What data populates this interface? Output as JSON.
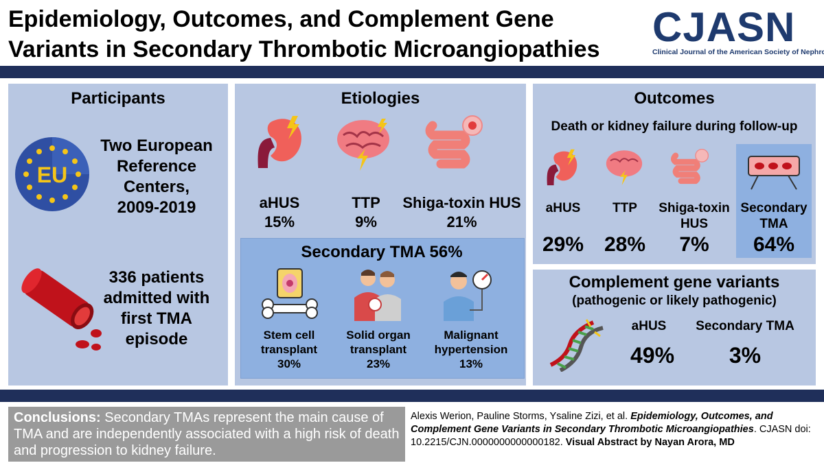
{
  "header": {
    "title_line1": "Epidemiology, Outcomes, and Complement Gene",
    "title_line2": "Variants in Secondary Thrombotic Microangiopathies",
    "logo_text": "CJASN",
    "logo_subtitle": "Clinical Journal of the American Society of Nephrology"
  },
  "participants": {
    "title": "Participants",
    "eu_label": "EU",
    "centers_lines": [
      "Two European",
      "Reference",
      "Centers,",
      "2009-2019"
    ],
    "patients_lines": [
      "336 patients",
      "admitted with",
      "first TMA",
      "episode"
    ]
  },
  "etiologies": {
    "title": "Etiologies",
    "items": [
      {
        "name": "aHUS",
        "pct": "15%",
        "icon": "kidney-icon"
      },
      {
        "name": "TTP",
        "pct": "9%",
        "icon": "brain-icon"
      },
      {
        "name": "Shiga-toxin HUS",
        "pct": "21%",
        "icon": "intestine-icon"
      }
    ],
    "secondary": {
      "title": "Secondary TMA 56%",
      "items": [
        {
          "line1": "Stem cell",
          "line2": "transplant",
          "pct": "30%",
          "icon": "bone-marrow-icon"
        },
        {
          "line1": "Solid organ",
          "line2": "transplant",
          "pct": "23%",
          "icon": "organ-transplant-icon"
        },
        {
          "line1": "Malignant",
          "line2": "hypertension",
          "pct": "13%",
          "icon": "blood-pressure-icon"
        }
      ]
    }
  },
  "outcomes": {
    "title": "Outcomes",
    "subtitle": "Death or kidney failure during follow-up",
    "items": [
      {
        "line1": "aHUS",
        "line2": "",
        "pct": "29%"
      },
      {
        "line1": "TTP",
        "line2": "",
        "pct": "28%"
      },
      {
        "line1": "Shiga-toxin",
        "line2": "HUS",
        "pct": "7%"
      },
      {
        "line1": "Secondary",
        "line2": "TMA",
        "pct": "64%"
      }
    ]
  },
  "complement": {
    "title": "Complement gene variants",
    "subtitle": "(pathogenic or likely pathogenic)",
    "items": [
      {
        "name": "aHUS",
        "pct": "49%"
      },
      {
        "name": "Secondary TMA",
        "pct": "3%"
      }
    ]
  },
  "conclusion": {
    "label": "Conclusions:",
    "text": " Secondary TMAs represent the main cause of TMA and are independently associated with a high risk of death and progression to kidney failure."
  },
  "citation": {
    "authors": "Alexis Werion, Pauline Storms, Ysaline Zizi, et al. ",
    "article_title": "Epidemiology, Outcomes, and Complement Gene Variants in Secondary Thrombotic Microangiopathies",
    "doi": ". CJASN doi: 10.2215/CJN.0000000000000182. ",
    "credit": "Visual Abstract by Nayan Arora, MD"
  },
  "colors": {
    "panel": "#b8c7e2",
    "secondary_box": "#8eb0e0",
    "navy": "#1f2f5a",
    "logo": "#1e3a6e",
    "conclusion_bg": "#9a9a9a"
  }
}
